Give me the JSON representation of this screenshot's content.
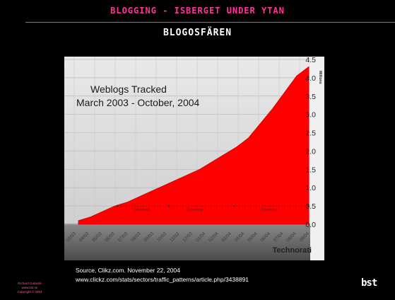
{
  "slide": {
    "title": "BLOGGING - ISBERGET UNDER YTAN",
    "subtitle": "BLOGOSFÄREN"
  },
  "chart_data": {
    "type": "area",
    "title_lines": [
      "Weblogs Tracked",
      "March 2003 - October, 2004"
    ],
    "ylabel": "Millions",
    "ylim": [
      0,
      4.5
    ],
    "y_ticks": [
      "4.5",
      "4.0",
      "3.5",
      "3.0",
      "2.5",
      "2.0",
      "1.5",
      "1.0",
      "0.5",
      "0.0"
    ],
    "x_labels": [
      "03/03",
      "04/03",
      "05/03",
      "06/03",
      "07/03",
      "08/03",
      "09/03",
      "10/03",
      "11/03",
      "12/03",
      "01/04",
      "02/04",
      "03/04",
      "04/04",
      "05/04",
      "06/04",
      "07/04",
      "08/04",
      "09/04"
    ],
    "series": [
      {
        "values": [
          0.1,
          0.2,
          0.35,
          0.5,
          0.6,
          0.75,
          0.9,
          1.05,
          1.2,
          1.35,
          1.5,
          1.7,
          1.9,
          2.1,
          2.35,
          2.75,
          3.15,
          3.6,
          4.05,
          4.3
        ]
      }
    ],
    "doubling_labels": [
      "Doubling",
      "Doubling",
      "Doubling"
    ],
    "doubling_level": 0.5,
    "grid": true,
    "fill_color": "#ff0000",
    "watermark": "Technorati"
  },
  "footer": {
    "source": "Source, Clikz.com. November 22, 2004",
    "url": "www.clickz.com/stats/sectors/traffic_patterns/article.php/3438891",
    "credit_lines": [
      "Richard Gatarski",
      "www.bst.se",
      "Copyright © 2004"
    ],
    "logo": "bst"
  }
}
